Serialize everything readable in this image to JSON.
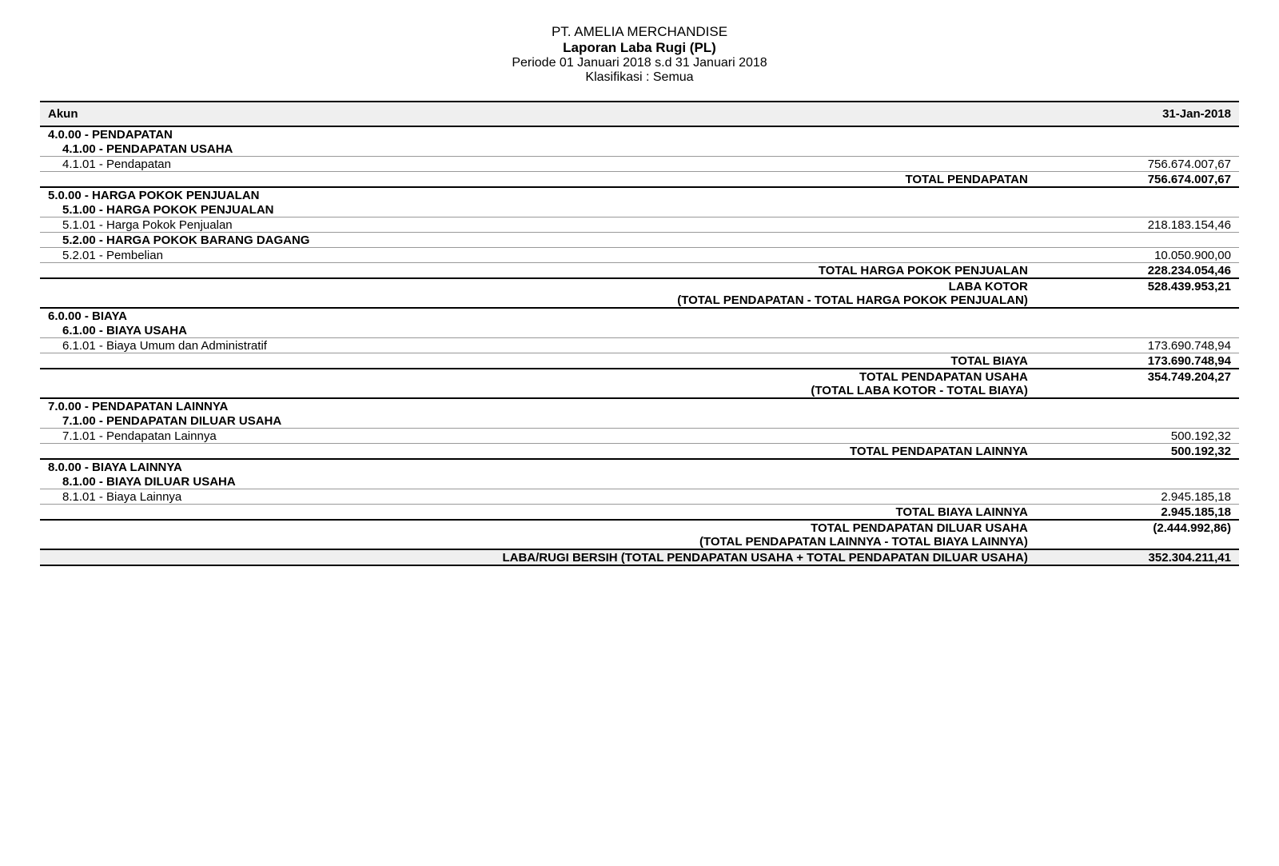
{
  "header": {
    "company": "PT. AMELIA MERCHANDISE",
    "title": "Laporan Laba Rugi (PL)",
    "period": "Periode 01 Januari 2018 s.d 31 Januari 2018",
    "classification": "Klasifikasi : Semua"
  },
  "columns": {
    "account": "Akun",
    "date": "31-Jan-2018"
  },
  "rows": {
    "r1": {
      "label": "4.0.00 - PENDAPATAN"
    },
    "r2": {
      "label": "4.1.00 - PENDAPATAN USAHA"
    },
    "r3": {
      "label": "4.1.01 - Pendapatan",
      "value": "756.674.007,67"
    },
    "r4": {
      "label": "TOTAL PENDAPATAN",
      "value": "756.674.007,67"
    },
    "r5": {
      "label": "5.0.00 - HARGA POKOK PENJUALAN"
    },
    "r6": {
      "label": "5.1.00 - HARGA POKOK PENJUALAN"
    },
    "r7": {
      "label": "5.1.01 - Harga Pokok Penjualan",
      "value": "218.183.154,46"
    },
    "r8": {
      "label": "5.2.00 - HARGA POKOK BARANG DAGANG"
    },
    "r9": {
      "label": "5.2.01 - Pembelian",
      "value": "10.050.900,00"
    },
    "r10": {
      "label": "TOTAL HARGA POKOK PENJUALAN",
      "value": "228.234.054,46"
    },
    "r11": {
      "label1": "LABA KOTOR",
      "label2": "(TOTAL PENDAPATAN - TOTAL HARGA POKOK PENJUALAN)",
      "value": "528.439.953,21"
    },
    "r12": {
      "label": "6.0.00 - BIAYA"
    },
    "r13": {
      "label": "6.1.00 - BIAYA USAHA"
    },
    "r14": {
      "label": "6.1.01 - Biaya Umum dan Administratif",
      "value": "173.690.748,94"
    },
    "r15": {
      "label": "TOTAL BIAYA",
      "value": "173.690.748,94"
    },
    "r16": {
      "label1": "TOTAL PENDAPATAN USAHA",
      "label2": "(TOTAL LABA KOTOR - TOTAL BIAYA)",
      "value": "354.749.204,27"
    },
    "r17": {
      "label": "7.0.00 - PENDAPATAN LAINNYA"
    },
    "r18": {
      "label": "7.1.00 - PENDAPATAN DILUAR USAHA"
    },
    "r19": {
      "label": "7.1.01 - Pendapatan Lainnya",
      "value": "500.192,32"
    },
    "r20": {
      "label": "TOTAL PENDAPATAN LAINNYA",
      "value": "500.192,32"
    },
    "r21": {
      "label": "8.0.00 - BIAYA LAINNYA"
    },
    "r22": {
      "label": "8.1.00 - BIAYA DILUAR USAHA"
    },
    "r23": {
      "label": "8.1.01 - Biaya Lainnya",
      "value": "2.945.185,18"
    },
    "r24": {
      "label": "TOTAL BIAYA LAINNYA",
      "value": "2.945.185,18"
    },
    "r25": {
      "label1": "TOTAL PENDAPATAN DILUAR USAHA",
      "label2": "(TOTAL PENDAPATAN LAINNYA - TOTAL BIAYA LAINNYA)",
      "value": "(2.444.992,86)"
    },
    "r26": {
      "label1": "LABA/RUGI BERSIH",
      "label2": "(TOTAL PENDAPATAN USAHA + TOTAL PENDAPATAN DILUAR USAHA)",
      "value": "352.304.211,41"
    }
  }
}
